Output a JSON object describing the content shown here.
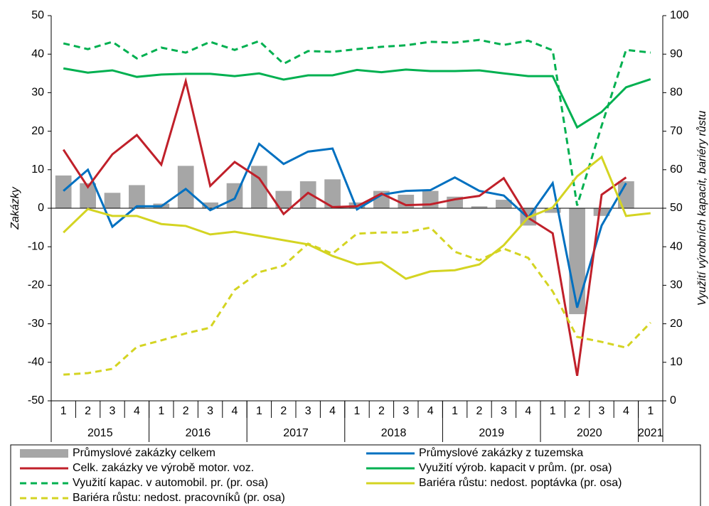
{
  "chart_data": {
    "type": "combo",
    "y_label": "Zakázky",
    "y2_label": "Využití výrobních kapacit, bariéry růstu",
    "categories": [
      "1",
      "2",
      "3",
      "4",
      "1",
      "2",
      "3",
      "4",
      "1",
      "2",
      "3",
      "4",
      "1",
      "2",
      "3",
      "4",
      "1",
      "2",
      "3",
      "4",
      "1",
      "2",
      "3",
      "4",
      "1"
    ],
    "years": [
      "2015",
      "2016",
      "2017",
      "2018",
      "2019",
      "2020",
      "2021"
    ],
    "ylim": [
      -50,
      50
    ],
    "yticks": [
      -50,
      -40,
      -30,
      -20,
      -10,
      0,
      10,
      20,
      30,
      40,
      50
    ],
    "y2lim": [
      0,
      100
    ],
    "y2ticks": [
      0,
      10,
      20,
      30,
      40,
      50,
      60,
      70,
      80,
      90,
      100
    ],
    "series": [
      {
        "name": "Průmyslové zakázky celkem",
        "type": "bar",
        "color": "#a6a6a6",
        "axis": "y",
        "values": [
          8.5,
          6.5,
          4,
          6,
          1.2,
          11,
          1.5,
          6.5,
          11,
          4.5,
          7,
          7.5,
          1.5,
          4.5,
          3.5,
          4.5,
          3,
          0.5,
          2.2,
          -4.5,
          -1.2,
          -27.5,
          -2,
          7,
          null
        ]
      },
      {
        "name": "Průmyslové zakázky z tuzemska",
        "type": "line",
        "color": "#0070c0",
        "axis": "y",
        "dash": false,
        "values": [
          4.5,
          10,
          -4.8,
          0.5,
          0.5,
          5,
          -0.5,
          2.5,
          16.7,
          11.5,
          14.7,
          15.5,
          -0.3,
          3.5,
          4.5,
          4.7,
          8,
          4.5,
          3.3,
          -2.5,
          6.5,
          -25.8,
          -4.5,
          6.5,
          null
        ]
      },
      {
        "name": "Celk. zakázky ve výrobě motor. voz.",
        "type": "line",
        "color": "#c0202a",
        "axis": "y",
        "dash": false,
        "values": [
          15.2,
          5.5,
          14,
          19,
          11.3,
          33,
          5.8,
          12,
          7.8,
          -1.5,
          4,
          0.3,
          0.5,
          3.8,
          0.8,
          1,
          2.3,
          3.2,
          7.8,
          -2.5,
          -6.5,
          -43.5,
          3.5,
          8,
          null
        ]
      },
      {
        "name": "Využití výrob. kapacit v prům. (pr. osa)",
        "type": "line",
        "color": "#00b050",
        "axis": "y2",
        "dash": false,
        "values": [
          86.3,
          85.2,
          85.8,
          84.1,
          84.7,
          84.9,
          84.9,
          84.3,
          85,
          83.4,
          84.5,
          84.5,
          85.9,
          85.3,
          86,
          85.6,
          85.6,
          85.8,
          85,
          84.3,
          84.3,
          71,
          75,
          81.4,
          83.5
        ]
      },
      {
        "name": "Využití kapac. v automobil. pr. (pr. osa)",
        "type": "line",
        "color": "#00b050",
        "axis": "y2",
        "dash": true,
        "values": [
          92.8,
          91.3,
          93.2,
          88.9,
          91.7,
          90.4,
          93.2,
          91.1,
          93.4,
          87.5,
          90.8,
          90.6,
          91.3,
          91.9,
          92.3,
          93.2,
          93,
          93.7,
          92.4,
          93.5,
          91,
          50.7,
          71.4,
          91.1,
          90.4
        ]
      },
      {
        "name": "Bariéra růstu: nedost. poptávka (pr. osa)",
        "type": "line",
        "color": "#d4d422",
        "axis": "y2",
        "dash": false,
        "values": [
          43.7,
          49.8,
          48,
          48,
          45.9,
          45.4,
          43.2,
          43.9,
          42.8,
          41.7,
          40.6,
          37.6,
          35.4,
          36,
          31.7,
          33.6,
          33.9,
          35.4,
          40.4,
          47.6,
          50.2,
          58.3,
          63.3,
          48,
          48.7
        ]
      },
      {
        "name": "Bariéra růstu: nedost. pracovníků (pr. osa)",
        "type": "line",
        "color": "#d4d422",
        "axis": "y2",
        "dash": true,
        "values": [
          6.8,
          7.2,
          8.3,
          14,
          15.7,
          17.5,
          19,
          28.8,
          33.4,
          35.1,
          40.8,
          38.2,
          43.4,
          43.7,
          43.7,
          45,
          38.7,
          36.5,
          39.5,
          37.1,
          28.4,
          16.6,
          15.3,
          13.8,
          20.3
        ]
      }
    ]
  }
}
